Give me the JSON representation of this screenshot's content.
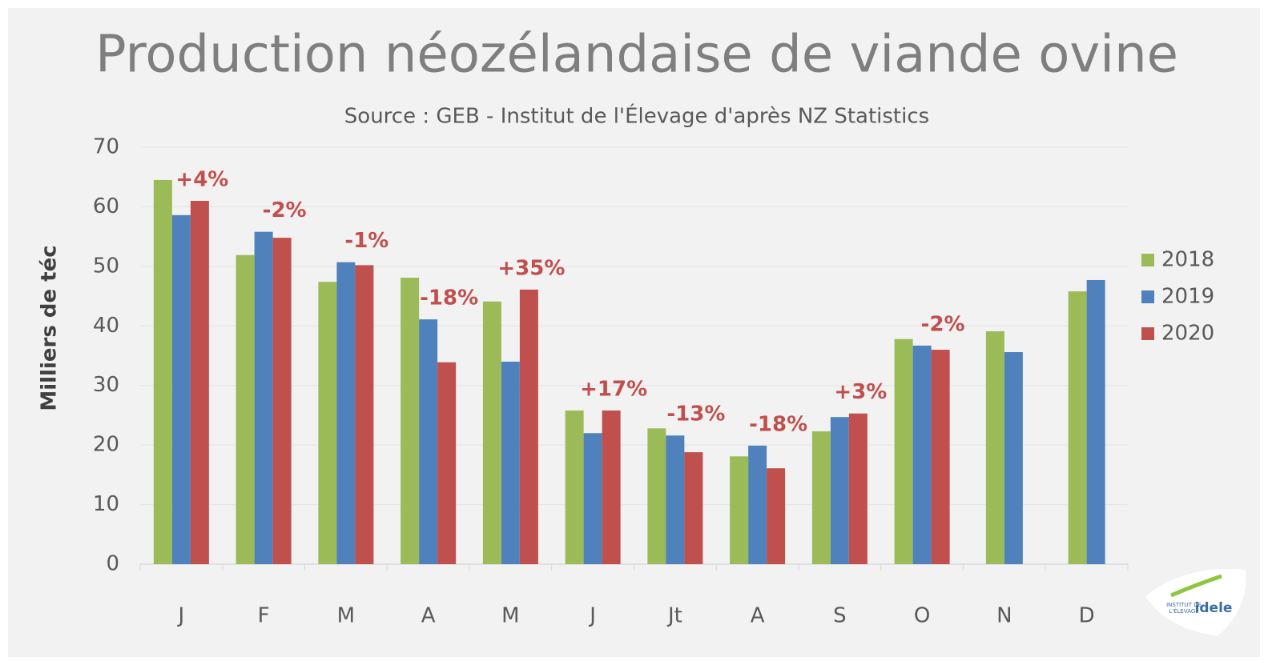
{
  "chart_data": {
    "type": "bar",
    "title": "Production néozélandaise de viande ovine",
    "subtitle": "Source : GEB - Institut de l'Élevage d'après NZ Statistics",
    "y_label": "Milliers de téc",
    "categories": [
      "J",
      "F",
      "M",
      "A",
      "M",
      "J",
      "Jt",
      "A",
      "S",
      "O",
      "N",
      "D"
    ],
    "series": [
      {
        "name": "2018",
        "color": "#9bbb59",
        "values": [
          64.5,
          51.9,
          47.4,
          48.1,
          44.1,
          25.8,
          22.8,
          18.1,
          22.3,
          37.8,
          39.1,
          45.8
        ]
      },
      {
        "name": "2019",
        "color": "#4f81bd",
        "values": [
          58.6,
          55.8,
          50.7,
          41.1,
          34.0,
          22.0,
          21.6,
          19.9,
          24.7,
          36.7,
          35.6,
          47.7
        ]
      },
      {
        "name": "2020",
        "color": "#c0504d",
        "values": [
          61.0,
          54.8,
          50.2,
          33.9,
          46.1,
          25.8,
          18.8,
          16.1,
          25.3,
          36.0,
          null,
          null
        ]
      }
    ],
    "annotations": [
      "+4%",
      "-2%",
      "-1%",
      "-18%",
      "+35%",
      "+17%",
      "-13%",
      "-18%",
      "+3%",
      "-2%",
      null,
      null
    ],
    "ylim": [
      0,
      70
    ],
    "yticks": [
      0,
      10,
      20,
      30,
      40,
      50,
      60,
      70
    ],
    "grid": true,
    "legend": "right",
    "logo": {
      "line1": "INSTITUT DE",
      "line2": "L'ÉLEVAGE",
      "brand": "idele"
    }
  }
}
